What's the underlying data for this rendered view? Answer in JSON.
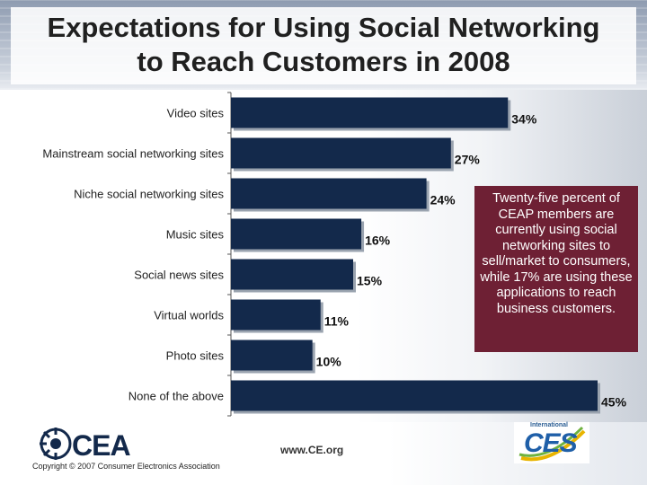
{
  "slide": {
    "title_line1": "Expectations for Using Social Networking",
    "title_line2": "to Reach Customers in 2008",
    "note": "Twenty-five percent of CEAP members are currently using social networking sites to sell/market to consumers, while 17% are using these applications to reach business customers."
  },
  "footer": {
    "logo_text": "CEA",
    "copyright": "Copyright © 2007 Consumer Electronics Association",
    "website": "www.CE.org",
    "ces_small": "International",
    "ces_text": "CES"
  },
  "chart_data": {
    "type": "bar",
    "orientation": "horizontal",
    "categories": [
      "Video sites",
      "Mainstream social networking sites",
      "Niche social networking sites",
      "Music sites",
      "Social news sites",
      "Virtual worlds",
      "Photo sites",
      "None of the above"
    ],
    "values": [
      34,
      27,
      24,
      16,
      15,
      11,
      10,
      45
    ],
    "labels": [
      "34%",
      "27%",
      "24%",
      "16%",
      "15%",
      "11%",
      "10%",
      "45%"
    ],
    "bar_color": "#13294b",
    "xlim": [
      0,
      45
    ],
    "grid": false
  }
}
